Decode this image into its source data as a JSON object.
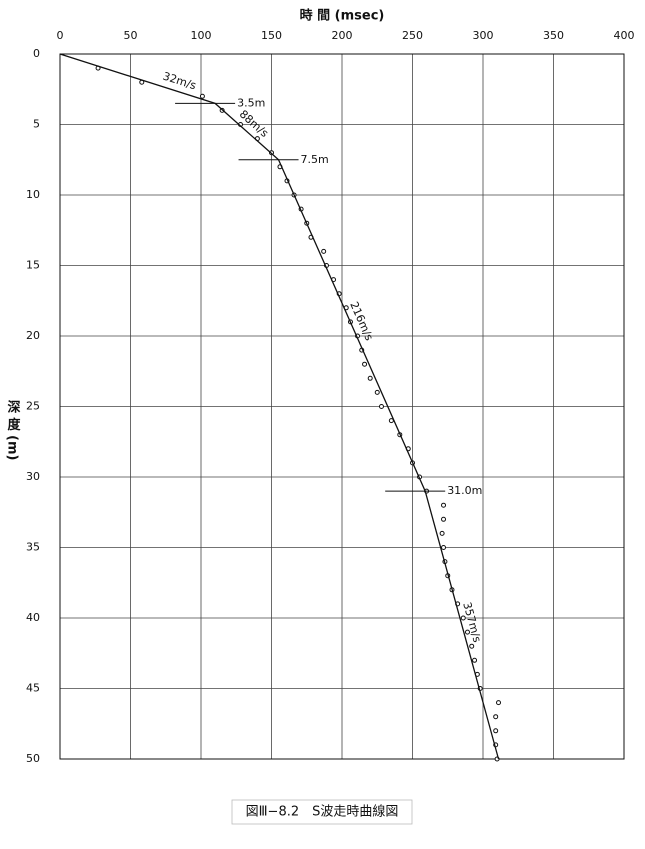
{
  "chart_data": {
    "type": "scatter",
    "title": "図Ⅲ−8.2　S波走時曲線図",
    "x_label": "時 間 (msec)",
    "y_label": "深 度 (m)",
    "xlim": [
      0,
      400
    ],
    "xticks": [
      0,
      50,
      100,
      150,
      200,
      250,
      300,
      350,
      400
    ],
    "ylim": [
      50,
      0
    ],
    "yticks": [
      0,
      5,
      10,
      15,
      20,
      25,
      30,
      35,
      40,
      45,
      50
    ],
    "xaxis_position": "top",
    "grid": true,
    "series": [
      {
        "type": "scatter",
        "color": "#111",
        "x": [
          27,
          58,
          101,
          115,
          128,
          140,
          150,
          156,
          161,
          166,
          171,
          175,
          178,
          187,
          189,
          194,
          198,
          203,
          206,
          211,
          214,
          216,
          220,
          225,
          228,
          235,
          241,
          247,
          250,
          255,
          260,
          272,
          272,
          271,
          272,
          273,
          275,
          278,
          282,
          286,
          289,
          292,
          294,
          296,
          298,
          311,
          309,
          309,
          309,
          310
        ],
        "values": [
          1,
          2,
          3,
          4,
          5,
          6,
          7,
          8,
          9,
          10,
          11,
          12,
          13,
          14,
          15,
          16,
          17,
          18,
          19,
          20,
          21,
          22,
          23,
          24,
          25,
          26,
          27,
          28,
          29,
          30,
          31,
          32,
          33,
          34,
          35,
          36,
          37,
          38,
          39,
          40,
          41,
          42,
          43,
          44,
          45,
          46,
          47,
          48,
          49,
          50
        ]
      },
      {
        "type": "line",
        "color": "#111",
        "x": [
          0,
          110,
          155,
          259,
          311
        ],
        "values": [
          0,
          3.5,
          7.5,
          31,
          50
        ]
      }
    ],
    "layers": [
      {
        "value": 3.5,
        "label": "3.5m"
      },
      {
        "value": 7.5,
        "label": "7.5m"
      },
      {
        "value": 31,
        "label": "31.0m"
      }
    ],
    "velocities": [
      {
        "value": 32,
        "label": "32m/s"
      },
      {
        "value": 88,
        "label": "88m/s"
      },
      {
        "value": 216,
        "label": "216m/s"
      },
      {
        "value": 357,
        "label": "357m/s"
      }
    ]
  }
}
